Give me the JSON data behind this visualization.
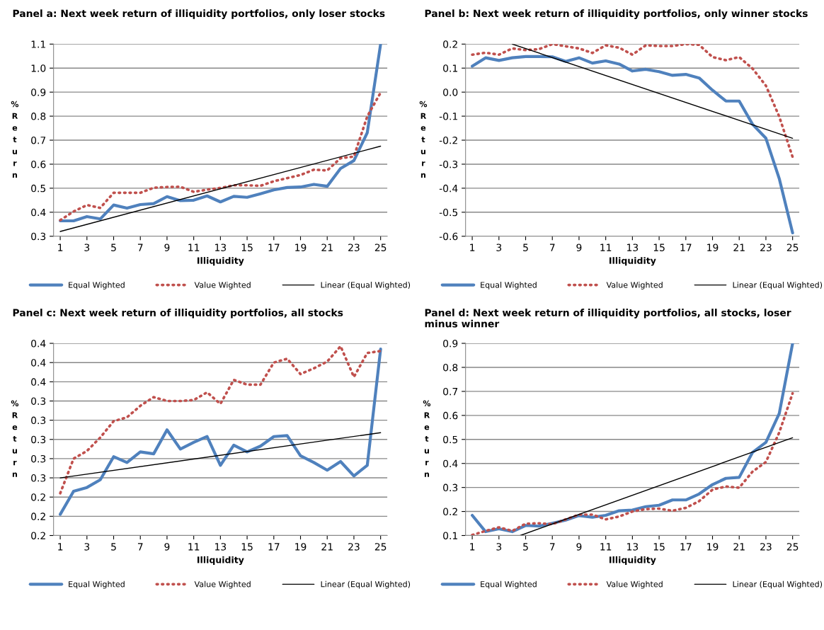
{
  "chart_data": [
    {
      "type": "line",
      "title": "Panel a: Next week return of illiquidity portfolios, only loser stocks",
      "xlabel": "Illiquidity",
      "ylabel": "%Return",
      "x": [
        1,
        2,
        3,
        4,
        5,
        6,
        7,
        8,
        9,
        10,
        11,
        12,
        13,
        14,
        15,
        16,
        17,
        18,
        19,
        20,
        21,
        22,
        23,
        24,
        25
      ],
      "xlim": [
        0.5,
        25.5
      ],
      "xticks": [
        1,
        3,
        5,
        7,
        9,
        11,
        13,
        15,
        17,
        19,
        21,
        23,
        25
      ],
      "ylim": [
        0.3,
        1.1
      ],
      "yticks": [
        {
          "value": 0.3,
          "label": "0.3"
        },
        {
          "value": 0.4,
          "label": "0.4"
        },
        {
          "value": 0.5,
          "label": "0.5"
        },
        {
          "value": 0.6,
          "label": "0.6"
        },
        {
          "value": 0.7,
          "label": "0.7"
        },
        {
          "value": 0.8,
          "label": "0.8"
        },
        {
          "value": 0.9,
          "label": "0.9"
        },
        {
          "value": 1.0,
          "label": "1.0"
        },
        {
          "value": 1.1,
          "label": "1.1"
        }
      ],
      "grid": "y",
      "legend": "bottom",
      "marker": "none",
      "series": [
        {
          "name": "Equal Wighted",
          "color": "#4f81bd",
          "line_style": "solid",
          "values": [
            0.364,
            0.364,
            0.382,
            0.372,
            0.43,
            0.417,
            0.432,
            0.436,
            0.465,
            0.448,
            0.45,
            0.468,
            0.443,
            0.466,
            0.462,
            0.477,
            0.493,
            0.503,
            0.505,
            0.516,
            0.508,
            0.582,
            0.615,
            0.731,
            1.1
          ]
        },
        {
          "name": "Value Wighted",
          "color": "#c0504d",
          "line_style": "dotted",
          "values": [
            0.367,
            0.403,
            0.43,
            0.418,
            0.481,
            0.481,
            0.481,
            0.502,
            0.505,
            0.506,
            0.485,
            0.494,
            0.501,
            0.512,
            0.512,
            0.51,
            0.529,
            0.542,
            0.555,
            0.577,
            0.574,
            0.625,
            0.632,
            0.799,
            0.898
          ]
        },
        {
          "name": "Linear (Equal Wighted)",
          "color": "#000000",
          "line_style": "solid",
          "type": "line",
          "x": [
            1,
            25
          ],
          "values": [
            0.32,
            0.675
          ]
        }
      ]
    },
    {
      "type": "line",
      "title": "Panel b: Next week return of illiquidity portfolios, only winner stocks",
      "xlabel": "Illiquidity",
      "ylabel": "%Return",
      "x": [
        1,
        2,
        3,
        4,
        5,
        6,
        7,
        8,
        9,
        10,
        11,
        12,
        13,
        14,
        15,
        16,
        17,
        18,
        19,
        20,
        21,
        22,
        23,
        24,
        25
      ],
      "xlim": [
        0.5,
        25.5
      ],
      "xticks": [
        1,
        3,
        5,
        7,
        9,
        11,
        13,
        15,
        17,
        19,
        21,
        23,
        25
      ],
      "ylim": [
        -0.6,
        0.2
      ],
      "yticks": [
        {
          "value": -0.6,
          "label": "-0.6"
        },
        {
          "value": -0.5,
          "label": "-0.5"
        },
        {
          "value": -0.4,
          "label": "-0.4"
        },
        {
          "value": -0.3,
          "label": "-0.3"
        },
        {
          "value": -0.2,
          "label": "-0.2"
        },
        {
          "value": -0.1,
          "label": "-0.1"
        },
        {
          "value": 0.0,
          "label": "0.0"
        },
        {
          "value": 0.1,
          "label": "0.1"
        },
        {
          "value": 0.2,
          "label": "0.2"
        }
      ],
      "grid": "y",
      "legend": "bottom",
      "marker": "none",
      "series": [
        {
          "name": "Equal Wighted",
          "color": "#4f81bd",
          "line_style": "solid",
          "values": [
            0.108,
            0.143,
            0.132,
            0.143,
            0.148,
            0.148,
            0.147,
            0.128,
            0.143,
            0.121,
            0.13,
            0.117,
            0.088,
            0.095,
            0.085,
            0.07,
            0.074,
            0.059,
            0.008,
            -0.037,
            -0.037,
            -0.134,
            -0.192,
            -0.36,
            -0.586
          ]
        },
        {
          "name": "Value Wighted",
          "color": "#c0504d",
          "line_style": "dotted",
          "values": [
            0.156,
            0.164,
            0.156,
            0.182,
            0.175,
            0.179,
            0.2,
            0.191,
            0.182,
            0.163,
            0.195,
            0.185,
            0.156,
            0.195,
            0.192,
            0.192,
            0.2,
            0.197,
            0.146,
            0.133,
            0.146,
            0.098,
            0.027,
            -0.102,
            -0.27
          ]
        },
        {
          "name": "Linear (Equal Wighted)",
          "color": "#000000",
          "line_style": "solid",
          "type": "line",
          "x": [
            4,
            25
          ],
          "values": [
            0.2,
            -0.192
          ]
        }
      ]
    },
    {
      "type": "line",
      "title": "Panel c: Next week return of illiquidity portfolios, all stocks",
      "xlabel": "Illiquidity",
      "ylabel": "%Return",
      "x": [
        1,
        2,
        3,
        4,
        5,
        6,
        7,
        8,
        9,
        10,
        11,
        12,
        13,
        14,
        15,
        16,
        17,
        18,
        19,
        20,
        21,
        22,
        23,
        24,
        25
      ],
      "xlim": [
        0.5,
        25.5
      ],
      "xticks": [
        1,
        3,
        5,
        7,
        9,
        11,
        13,
        15,
        17,
        19,
        21,
        23,
        25
      ],
      "ylim": [
        0.2,
        0.4
      ],
      "yticks": [
        {
          "value": 0.2,
          "label": "0.2"
        },
        {
          "value": 0.22,
          "label": "0.2"
        },
        {
          "value": 0.24,
          "label": "0.2"
        },
        {
          "value": 0.26,
          "label": "0.3"
        },
        {
          "value": 0.28,
          "label": "0.3"
        },
        {
          "value": 0.3,
          "label": "0.3"
        },
        {
          "value": 0.32,
          "label": "0.3"
        },
        {
          "value": 0.34,
          "label": "0.3"
        },
        {
          "value": 0.36,
          "label": "0.4"
        },
        {
          "value": 0.38,
          "label": "0.4"
        },
        {
          "value": 0.4,
          "label": "0.4"
        }
      ],
      "grid": "y",
      "legend": "bottom",
      "marker": "none",
      "series": [
        {
          "name": "Equal Wighted",
          "color": "#4f81bd",
          "line_style": "solid",
          "values": [
            0.222,
            0.246,
            0.25,
            0.258,
            0.282,
            0.276,
            0.287,
            0.285,
            0.31,
            0.29,
            0.297,
            0.303,
            0.273,
            0.294,
            0.287,
            0.293,
            0.303,
            0.304,
            0.283,
            0.276,
            0.268,
            0.277,
            0.262,
            0.273,
            0.394
          ]
        },
        {
          "name": "Value Wighted",
          "color": "#c0504d",
          "line_style": "dotted",
          "values": [
            0.244,
            0.28,
            0.288,
            0.302,
            0.319,
            0.323,
            0.335,
            0.344,
            0.34,
            0.34,
            0.341,
            0.349,
            0.337,
            0.362,
            0.357,
            0.357,
            0.38,
            0.384,
            0.368,
            0.374,
            0.381,
            0.397,
            0.365,
            0.39,
            0.392
          ]
        },
        {
          "name": "Linear (Equal Wighted)",
          "color": "#000000",
          "line_style": "solid",
          "type": "line",
          "x": [
            1,
            25
          ],
          "values": [
            0.26,
            0.307
          ]
        }
      ]
    },
    {
      "type": "line",
      "title": "Panel d: Next week return of illiquidity portfolios, all stocks, loser minus winner",
      "xlabel": "Illiquidity",
      "ylabel": "%Return",
      "x": [
        1,
        2,
        3,
        4,
        5,
        6,
        7,
        8,
        9,
        10,
        11,
        12,
        13,
        14,
        15,
        16,
        17,
        18,
        19,
        20,
        21,
        22,
        23,
        24,
        25
      ],
      "xlim": [
        0.5,
        25.5
      ],
      "xticks": [
        1,
        3,
        5,
        7,
        9,
        11,
        13,
        15,
        17,
        19,
        21,
        23,
        25
      ],
      "ylim": [
        0.1,
        0.9
      ],
      "yticks": [
        {
          "value": 0.1,
          "label": "0.1"
        },
        {
          "value": 0.2,
          "label": "0.2"
        },
        {
          "value": 0.3,
          "label": "0.3"
        },
        {
          "value": 0.4,
          "label": "0.4"
        },
        {
          "value": 0.5,
          "label": "0.5"
        },
        {
          "value": 0.6,
          "label": "0.6"
        },
        {
          "value": 0.7,
          "label": "0.7"
        },
        {
          "value": 0.8,
          "label": "0.8"
        },
        {
          "value": 0.9,
          "label": "0.9"
        }
      ],
      "grid": "y",
      "legend": "bottom",
      "marker": "none",
      "series": [
        {
          "name": "Equal Wighted",
          "color": "#4f81bd",
          "line_style": "solid",
          "values": [
            0.184,
            0.116,
            0.128,
            0.116,
            0.142,
            0.139,
            0.151,
            0.164,
            0.183,
            0.176,
            0.184,
            0.203,
            0.206,
            0.22,
            0.226,
            0.248,
            0.248,
            0.273,
            0.312,
            0.338,
            0.342,
            0.446,
            0.488,
            0.608,
            0.9
          ]
        },
        {
          "name": "Value Wighted",
          "color": "#c0504d",
          "line_style": "dotted",
          "values": [
            0.102,
            0.119,
            0.134,
            0.119,
            0.149,
            0.151,
            0.147,
            0.167,
            0.187,
            0.187,
            0.167,
            0.179,
            0.2,
            0.21,
            0.212,
            0.203,
            0.215,
            0.243,
            0.291,
            0.304,
            0.299,
            0.366,
            0.406,
            0.529,
            0.692
          ]
        },
        {
          "name": "Linear (Equal Wighted)",
          "color": "#000000",
          "line_style": "solid",
          "type": "line",
          "x": [
            4.6,
            25
          ],
          "values": [
            0.1,
            0.507
          ]
        }
      ]
    }
  ]
}
